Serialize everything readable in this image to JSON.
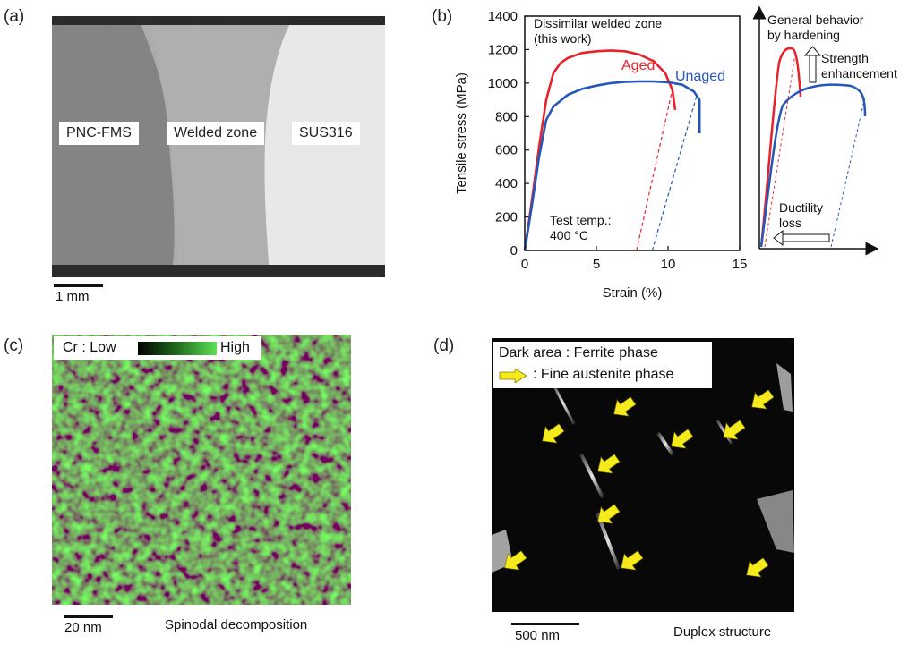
{
  "panel_a": {
    "label": "(a)",
    "regions": [
      "PNC-FMS",
      "Welded zone",
      "SUS316"
    ],
    "scale_bar": "1 mm"
  },
  "panel_b": {
    "label": "(b)",
    "annotation_title": "Dissimilar welded zone\n(this work)",
    "test_temp_label": "Test temp.:\n400 °C",
    "schematic": {
      "title": "General behavior\nby hardening",
      "strength_label": "Strength\nenhancement",
      "ductility_label": "Ductility\nloss"
    }
  },
  "chart_data": {
    "type": "line",
    "xlabel": "Strain (%)",
    "ylabel": "Tensile stress (MPa)",
    "xlim": [
      0,
      15
    ],
    "ylim": [
      0,
      1400
    ],
    "xticks": [
      0,
      5,
      10,
      15
    ],
    "yticks": [
      0,
      200,
      400,
      600,
      800,
      1000,
      1200,
      1400
    ],
    "grid": false,
    "series": [
      {
        "name": "Aged",
        "color": "#e8212b",
        "x": [
          0,
          0.5,
          1.0,
          1.5,
          2.0,
          2.5,
          3.0,
          4.0,
          5.0,
          6.0,
          7.0,
          8.0,
          9.0,
          9.8,
          10.3,
          10.5
        ],
        "y": [
          0,
          300,
          620,
          900,
          1060,
          1120,
          1150,
          1180,
          1190,
          1195,
          1190,
          1170,
          1130,
          1060,
          960,
          840
        ],
        "unloading_x": [
          7.8,
          10.3
        ]
      },
      {
        "name": "Unaged",
        "color": "#2457b8",
        "x": [
          0,
          0.5,
          1.0,
          1.5,
          2.0,
          3.0,
          4.0,
          5.0,
          6.0,
          7.0,
          8.0,
          9.0,
          10.0,
          11.0,
          11.8,
          12.2,
          12.2
        ],
        "y": [
          0,
          270,
          560,
          780,
          860,
          930,
          965,
          985,
          1000,
          1008,
          1010,
          1010,
          1005,
          990,
          950,
          900,
          700
        ],
        "unloading_x": [
          8.9,
          12.0
        ]
      }
    ]
  },
  "panel_c": {
    "label": "(c)",
    "legend_prefix": "Cr : Low",
    "legend_high": "High",
    "scale_bar": "20 nm",
    "caption": "Spinodal decomposition"
  },
  "panel_d": {
    "label": "(d)",
    "legend_line1": "Dark area : Ferrite phase",
    "legend_line2": ": Fine austenite phase",
    "scale_bar": "500 nm",
    "caption": "Duplex structure"
  },
  "colors": {
    "aged": "#e8212b",
    "unaged": "#2457b8",
    "cr_green": "#4fd04a",
    "arrow_yellow": "#f4ea1c"
  }
}
